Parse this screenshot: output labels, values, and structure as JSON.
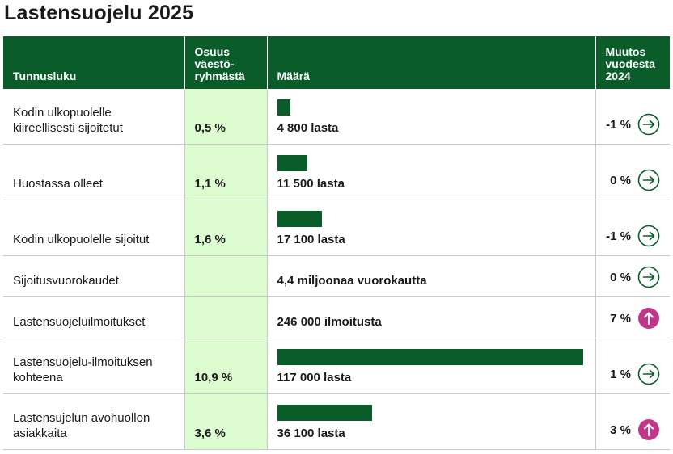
{
  "title": "Lastensuojelu 2025",
  "headers": {
    "indicator": "Tunnusluku",
    "share": "Osuus väestö-ryhmästä",
    "amount": "Määrä",
    "change": "Muutos vuodesta 2024"
  },
  "colors": {
    "header_bg": "#0a5c29",
    "bar": "#0a5c29",
    "share_bg": "#dcfbcf",
    "arrow_neutral": "#0a5c29",
    "arrow_up": "#c0368a"
  },
  "chart_data": {
    "type": "table",
    "rows": [
      {
        "name": "Kodin ulkopuolelle kiireellisesti sijoitetut",
        "share": "0,5 %",
        "amount_label": "4 800 lasta",
        "amount": 4800,
        "has_bar": true,
        "change": "-1 %",
        "trend": "right-arrow-icon"
      },
      {
        "name": "Huostassa olleet",
        "share": "1,1 %",
        "amount_label": "11 500 lasta",
        "amount": 11500,
        "has_bar": true,
        "change": "0 %",
        "trend": "right-arrow-icon"
      },
      {
        "name": "Kodin ulkopuolelle sijoitut",
        "share": "1,6 %",
        "amount_label": "17 100 lasta",
        "amount": 17100,
        "has_bar": true,
        "change": "-1 %",
        "trend": "right-arrow-icon"
      },
      {
        "name": "Sijoitusvuorokaudet",
        "share": "",
        "amount_label": "4,4 miljoonaa vuorokautta",
        "amount": 4400000,
        "has_bar": false,
        "change": "0 %",
        "trend": "right-arrow-icon"
      },
      {
        "name": "Lastensuojeluilmoitukset",
        "share": "",
        "amount_label": "246 000 ilmoitusta",
        "amount": 246000,
        "has_bar": false,
        "change": "7 %",
        "trend": "up-arrow-icon"
      },
      {
        "name": "Lastensuojelu-ilmoituksen kohteena",
        "share": "10,9 %",
        "amount_label": "117 000 lasta",
        "amount": 117000,
        "has_bar": true,
        "change": "1 %",
        "trend": "right-arrow-icon"
      },
      {
        "name": "Lastensujelun avohuollon asiakkaita",
        "share": "3,6 %",
        "amount_label": "36 100 lasta",
        "amount": 36100,
        "has_bar": true,
        "change": "3 %",
        "trend": "up-arrow-icon"
      }
    ],
    "bar_max": 117000
  }
}
